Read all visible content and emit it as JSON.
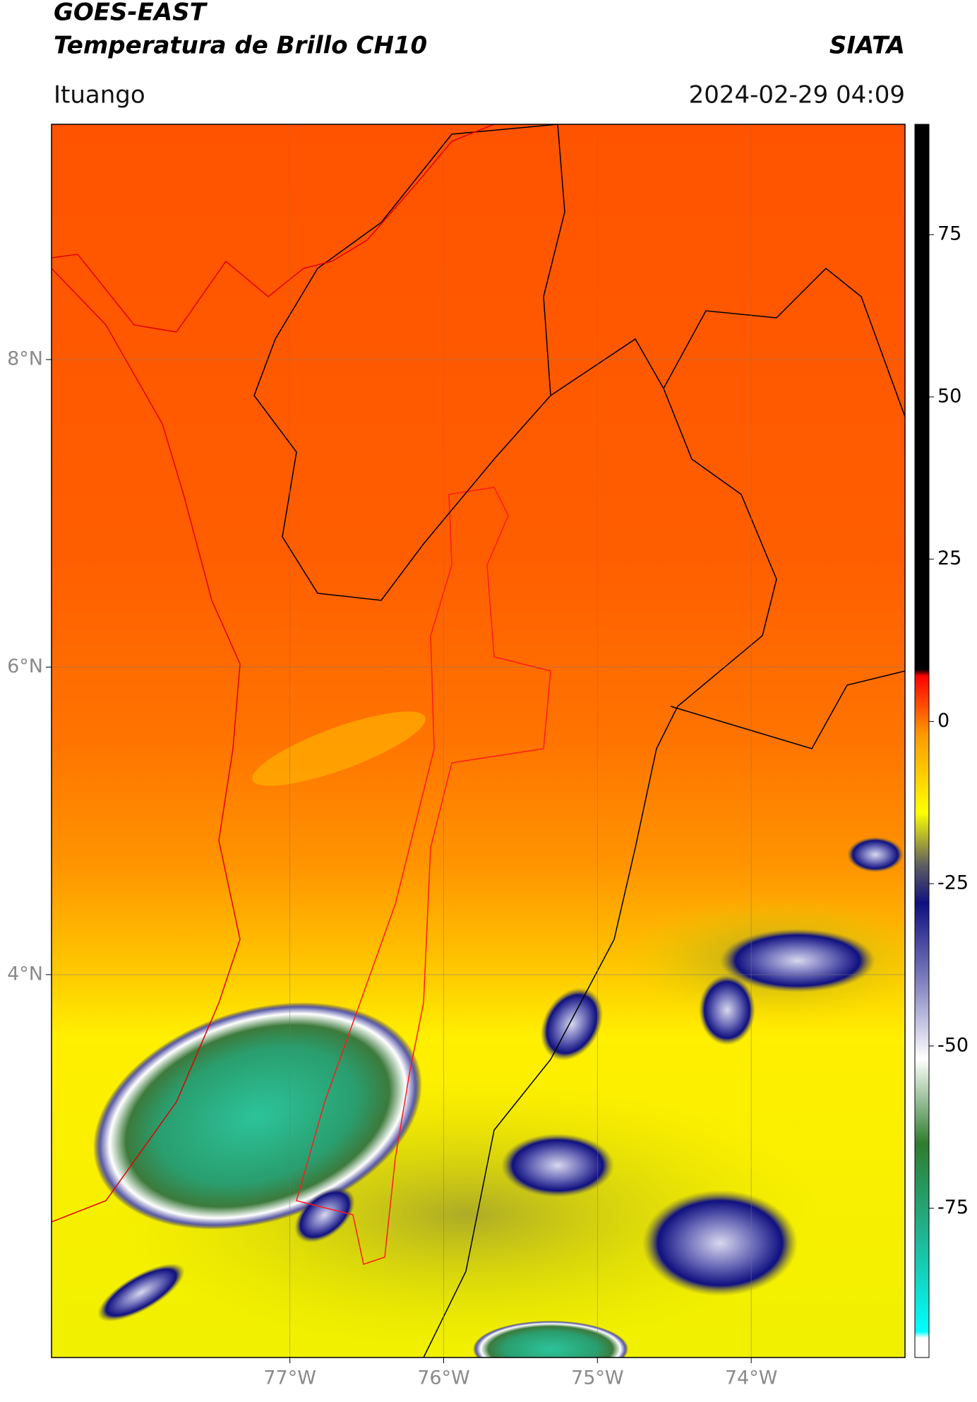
{
  "chart_data": {
    "type": "map",
    "title": "GOES-EAST",
    "subtitle": "Temperatura de Brillo CH10",
    "source": "SIATA",
    "region": "Ituango",
    "date": "2024-02-29 04:09",
    "xlim": [
      -78.55,
      -73.0
    ],
    "ylim": [
      1.51,
      9.53
    ],
    "xticks": [
      {
        "value": -77,
        "label": "77°W"
      },
      {
        "value": -76,
        "label": "76°W"
      },
      {
        "value": -75,
        "label": "75°W"
      },
      {
        "value": -74,
        "label": "74°W"
      }
    ],
    "yticks": [
      {
        "value": 4,
        "label": "4°N"
      },
      {
        "value": 6,
        "label": "6°N"
      },
      {
        "value": 8,
        "label": "8°N"
      }
    ],
    "grid": true,
    "colorbar": {
      "lim": [
        -98,
        92
      ],
      "ticks": [
        -75,
        -50,
        -25,
        0,
        25,
        50,
        75
      ],
      "stops": [
        {
          "value": -98,
          "color": "#ffffff"
        },
        {
          "value": -95,
          "color": "#ffffff"
        },
        {
          "value": -94,
          "color": "#00ffff"
        },
        {
          "value": -78,
          "color": "#22b08a"
        },
        {
          "value": -65,
          "color": "#2e7d2e"
        },
        {
          "value": -52,
          "color": "#ffffff"
        },
        {
          "value": -40,
          "color": "#8080c0"
        },
        {
          "value": -28,
          "color": "#101080"
        },
        {
          "value": -22,
          "color": "#606060"
        },
        {
          "value": -14,
          "color": "#ffff00"
        },
        {
          "value": -2,
          "color": "#ff9900"
        },
        {
          "value": 7,
          "color": "#ff0000"
        },
        {
          "value": 8,
          "color": "#000000"
        },
        {
          "value": 92,
          "color": "#000000"
        }
      ]
    }
  }
}
